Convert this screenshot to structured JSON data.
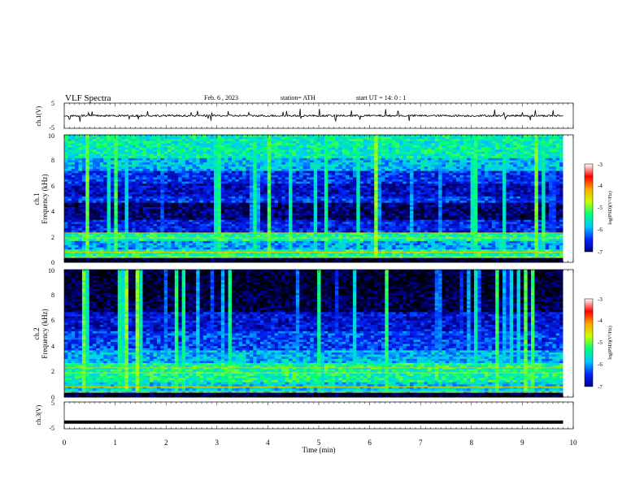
{
  "header": {
    "title": "VLF  Spectra",
    "date": "Feb. 6   , 2023",
    "station": "station= ATH",
    "start": "start  UT  =   14: 0   : 1"
  },
  "colors": {
    "colormap": [
      "#000000",
      "#00008a",
      "#0026ff",
      "#00c8ff",
      "#00ff7a",
      "#c8ff00",
      "#ffaa00",
      "#ff0000",
      "#ffffff"
    ],
    "trace": "#000000",
    "frame": "#000000"
  },
  "chart_data": [
    {
      "type": "line",
      "name": "ch1-waveform",
      "ylabel": "ch.1(V)",
      "ylim": [
        -5,
        5
      ],
      "yticks": [
        "5",
        "-5"
      ],
      "x_range": [
        0,
        9.8
      ],
      "baseline": 0,
      "noise_amplitude": 0.8,
      "spike_amplitude": 2.5
    },
    {
      "type": "heatmap",
      "name": "ch1-spectrogram",
      "ylabel": "ch.1",
      "ylabel2": "Frequency  (kHz)",
      "ylim": [
        0,
        10
      ],
      "yticks": [
        "0",
        "2",
        "4",
        "6",
        "8",
        "10"
      ],
      "x_range": [
        0,
        9.8
      ],
      "band_levels": [
        {
          "f": [
            0.0,
            0.3
          ],
          "level": 0.05
        },
        {
          "f": [
            0.3,
            1.0
          ],
          "level": 0.55
        },
        {
          "f": [
            1.0,
            1.6
          ],
          "level": 0.4
        },
        {
          "f": [
            1.6,
            2.4
          ],
          "level": 0.55
        },
        {
          "f": [
            2.4,
            3.3
          ],
          "level": 0.25
        },
        {
          "f": [
            3.3,
            4.6
          ],
          "level": 0.12
        },
        {
          "f": [
            4.6,
            5.2
          ],
          "level": 0.28
        },
        {
          "f": [
            5.2,
            6.2
          ],
          "level": 0.2
        },
        {
          "f": [
            6.2,
            7.2
          ],
          "level": 0.28
        },
        {
          "f": [
            7.2,
            8.2
          ],
          "level": 0.42
        },
        {
          "f": [
            8.2,
            10.0
          ],
          "level": 0.52
        }
      ],
      "colorbar": {
        "label": "log(PSD)(V²/Hz)",
        "range": [
          -7,
          -3
        ],
        "ticks": [
          "-3",
          "-4",
          "-5",
          "-6",
          "-7"
        ]
      }
    },
    {
      "type": "heatmap",
      "name": "ch2-spectrogram",
      "ylabel": "ch.2",
      "ylabel2": "Frequency  (kHz)",
      "ylim": [
        0,
        10
      ],
      "yticks": [
        "0",
        "2",
        "4",
        "6",
        "8",
        "10"
      ],
      "x_range": [
        0,
        9.8
      ],
      "band_levels": [
        {
          "f": [
            0.0,
            0.3
          ],
          "level": 0.05
        },
        {
          "f": [
            0.3,
            1.2
          ],
          "level": 0.45
        },
        {
          "f": [
            1.2,
            2.6
          ],
          "level": 0.55
        },
        {
          "f": [
            2.6,
            3.6
          ],
          "level": 0.42
        },
        {
          "f": [
            3.6,
            5.2
          ],
          "level": 0.3
        },
        {
          "f": [
            5.2,
            6.6
          ],
          "level": 0.22
        },
        {
          "f": [
            6.6,
            8.0
          ],
          "level": 0.08
        },
        {
          "f": [
            8.0,
            10.0
          ],
          "level": 0.05
        }
      ],
      "colorbar": {
        "label": "log(PSD)(V²/Hz)",
        "range": [
          -7,
          -3
        ],
        "ticks": [
          "-3",
          "-4",
          "-5",
          "-6",
          "-7"
        ]
      }
    },
    {
      "type": "line",
      "name": "ch3-waveform",
      "ylabel": "ch.3(V)",
      "ylim": [
        -5,
        5
      ],
      "yticks": [
        "5",
        "-5"
      ],
      "x_range": [
        0,
        9.8
      ],
      "baseline": -2.5,
      "noise_amplitude": 0.0,
      "spike_amplitude": 0.0
    }
  ],
  "xaxis": {
    "label": "Time  (min)",
    "xlim": [
      0,
      10
    ],
    "ticks": [
      "0",
      "1",
      "2",
      "3",
      "4",
      "5",
      "6",
      "7",
      "8",
      "9",
      "10"
    ]
  }
}
